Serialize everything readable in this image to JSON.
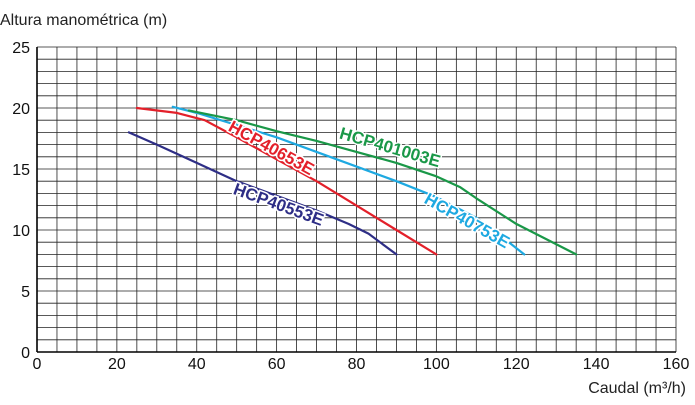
{
  "chart_data": {
    "type": "line",
    "ylabel": "Altura manométrica (m)",
    "xlabel": "Caudal (m³/h)",
    "xlim": [
      0,
      160
    ],
    "ylim": [
      0,
      25
    ],
    "xticks": [
      "0",
      "20",
      "40",
      "60",
      "80",
      "100",
      "120",
      "140",
      "160"
    ],
    "yticks": [
      "0",
      "5",
      "10",
      "15",
      "20",
      "25"
    ],
    "grid": true,
    "series": [
      {
        "name": "HCP40553E",
        "color": "#2e2e86",
        "x": [
          23,
          30,
          40,
          50,
          60,
          70,
          78,
          83,
          90
        ],
        "y": [
          18,
          17,
          15.5,
          14,
          12.8,
          11.6,
          10.5,
          9.7,
          8
        ]
      },
      {
        "name": "HCP40653E",
        "color": "#e3202a",
        "x": [
          25,
          35,
          42,
          50,
          60,
          70,
          80,
          90,
          100
        ],
        "y": [
          20,
          19.6,
          19,
          17.6,
          15.8,
          14,
          12,
          10,
          8
        ]
      },
      {
        "name": "HCP40753E",
        "color": "#1ea9e1",
        "x": [
          34,
          40,
          50,
          60,
          70,
          80,
          90,
          100,
          110,
          115,
          122
        ],
        "y": [
          20.1,
          19.6,
          18.6,
          17.6,
          16.4,
          15.2,
          14,
          12.7,
          11,
          9.8,
          8
        ]
      },
      {
        "name": "HCP401003E",
        "color": "#1a9848",
        "x": [
          38,
          50,
          60,
          70,
          80,
          90,
          100,
          106,
          110,
          120,
          135
        ],
        "y": [
          19.8,
          19,
          18.1,
          17.3,
          16.4,
          15.5,
          14.4,
          13.5,
          12.6,
          10.5,
          8
        ]
      }
    ]
  }
}
